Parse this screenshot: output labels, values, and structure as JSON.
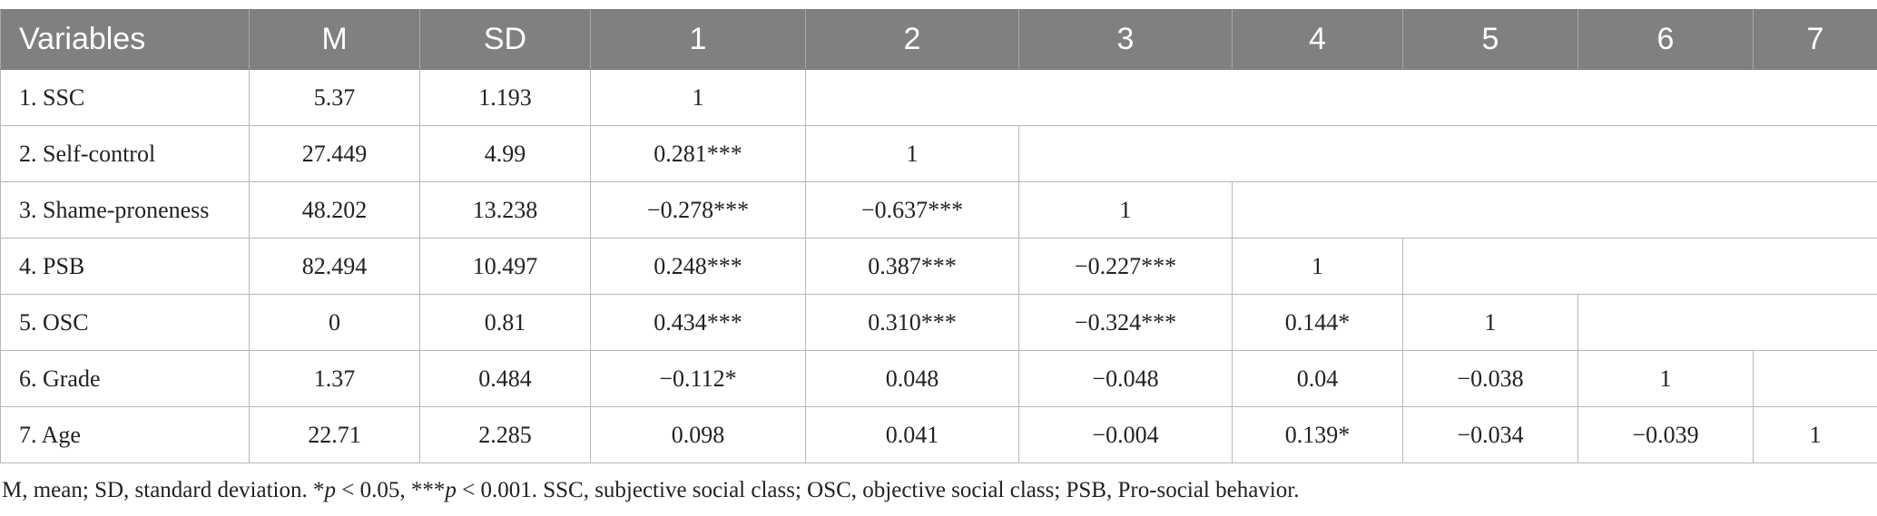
{
  "table": {
    "headers": [
      "Variables",
      "M",
      "SD",
      "1",
      "2",
      "3",
      "4",
      "5",
      "6",
      "7"
    ],
    "rows": [
      [
        "1. SSC",
        "5.37",
        "1.193",
        "1",
        "",
        "",
        "",
        "",
        "",
        ""
      ],
      [
        "2. Self-control",
        "27.449",
        "4.99",
        "0.281***",
        "1",
        "",
        "",
        "",
        "",
        ""
      ],
      [
        "3. Shame-proneness",
        "48.202",
        "13.238",
        "−0.278***",
        "−0.637***",
        "1",
        "",
        "",
        "",
        ""
      ],
      [
        "4. PSB",
        "82.494",
        "10.497",
        "0.248***",
        "0.387***",
        "−0.227***",
        "1",
        "",
        "",
        ""
      ],
      [
        "5. OSC",
        "0",
        "0.81",
        "0.434***",
        "0.310***",
        "−0.324***",
        "0.144*",
        "1",
        "",
        ""
      ],
      [
        "6. Grade",
        "1.37",
        "0.484",
        "−0.112*",
        "0.048",
        "−0.048",
        "0.04",
        "−0.038",
        "1",
        ""
      ],
      [
        "7. Age",
        "22.71",
        "2.285",
        "0.098",
        "0.041",
        "−0.004",
        "0.139*",
        "−0.034",
        "−0.039",
        "1"
      ]
    ]
  },
  "note": {
    "t1": "M, mean; SD, standard deviation. *",
    "p1": "p",
    "t2": " < 0.05, ***",
    "p2": "p",
    "t3": " < 0.001. SSC, subjective social class; OSC, objective social class; PSB, Pro-social behavior."
  }
}
